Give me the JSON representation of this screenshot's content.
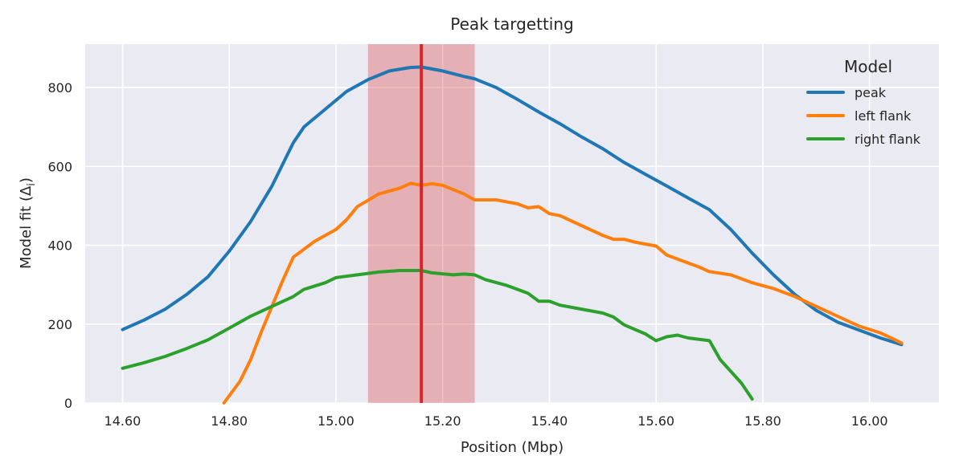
{
  "chart_data": {
    "type": "line",
    "title": "Peak targetting",
    "xlabel": "Position (Mbp)",
    "ylabel": "Model fit (Δ",
    "ylabel_sub": "i",
    "ylabel_close": ")",
    "xlim": [
      14.53,
      16.13
    ],
    "ylim": [
      0,
      910
    ],
    "xticks": [
      14.6,
      14.8,
      15.0,
      15.2,
      15.4,
      15.6,
      15.8,
      16.0
    ],
    "xtick_labels": [
      "14.60",
      "14.80",
      "15.00",
      "15.20",
      "15.40",
      "15.60",
      "15.80",
      "16.00"
    ],
    "yticks": [
      0,
      200,
      400,
      600,
      800
    ],
    "ytick_labels": [
      "0",
      "200",
      "400",
      "600",
      "800"
    ],
    "grid": true,
    "legend": {
      "title": "Model",
      "position": "top-right"
    },
    "peak_line": {
      "x": 15.16,
      "color": "#d62728"
    },
    "peak_span": {
      "x0": 15.06,
      "x1": 15.26,
      "color": "#d62728"
    },
    "series": [
      {
        "name": "peak",
        "color": "#1f77b4",
        "points": [
          [
            14.6,
            186
          ],
          [
            14.64,
            210
          ],
          [
            14.68,
            238
          ],
          [
            14.72,
            275
          ],
          [
            14.76,
            320
          ],
          [
            14.8,
            385
          ],
          [
            14.84,
            460
          ],
          [
            14.88,
            550
          ],
          [
            14.92,
            660
          ],
          [
            14.94,
            700
          ],
          [
            14.98,
            745
          ],
          [
            15.02,
            790
          ],
          [
            15.06,
            820
          ],
          [
            15.1,
            842
          ],
          [
            15.14,
            851
          ],
          [
            15.16,
            852
          ],
          [
            15.2,
            842
          ],
          [
            15.24,
            828
          ],
          [
            15.26,
            822
          ],
          [
            15.3,
            800
          ],
          [
            15.34,
            770
          ],
          [
            15.38,
            738
          ],
          [
            15.42,
            708
          ],
          [
            15.46,
            675
          ],
          [
            15.5,
            645
          ],
          [
            15.54,
            610
          ],
          [
            15.58,
            580
          ],
          [
            15.62,
            550
          ],
          [
            15.66,
            520
          ],
          [
            15.7,
            490
          ],
          [
            15.74,
            440
          ],
          [
            15.78,
            380
          ],
          [
            15.82,
            325
          ],
          [
            15.86,
            275
          ],
          [
            15.9,
            235
          ],
          [
            15.94,
            205
          ],
          [
            15.98,
            185
          ],
          [
            16.02,
            165
          ],
          [
            16.06,
            148
          ]
        ]
      },
      {
        "name": "left flank",
        "color": "#ff7f0e",
        "points": [
          [
            14.79,
            0
          ],
          [
            14.82,
            55
          ],
          [
            14.84,
            110
          ],
          [
            14.86,
            180
          ],
          [
            14.88,
            245
          ],
          [
            14.9,
            310
          ],
          [
            14.92,
            370
          ],
          [
            14.96,
            410
          ],
          [
            15.0,
            440
          ],
          [
            15.02,
            465
          ],
          [
            15.04,
            498
          ],
          [
            15.08,
            530
          ],
          [
            15.12,
            545
          ],
          [
            15.14,
            557
          ],
          [
            15.16,
            552
          ],
          [
            15.18,
            556
          ],
          [
            15.2,
            552
          ],
          [
            15.24,
            530
          ],
          [
            15.26,
            515
          ],
          [
            15.3,
            515
          ],
          [
            15.34,
            505
          ],
          [
            15.36,
            495
          ],
          [
            15.38,
            498
          ],
          [
            15.4,
            480
          ],
          [
            15.42,
            475
          ],
          [
            15.46,
            450
          ],
          [
            15.5,
            425
          ],
          [
            15.52,
            415
          ],
          [
            15.54,
            415
          ],
          [
            15.56,
            408
          ],
          [
            15.6,
            398
          ],
          [
            15.62,
            375
          ],
          [
            15.64,
            365
          ],
          [
            15.68,
            345
          ],
          [
            15.7,
            333
          ],
          [
            15.74,
            325
          ],
          [
            15.78,
            305
          ],
          [
            15.82,
            290
          ],
          [
            15.86,
            270
          ],
          [
            15.9,
            245
          ],
          [
            15.94,
            220
          ],
          [
            15.98,
            195
          ],
          [
            16.02,
            178
          ],
          [
            16.06,
            152
          ]
        ]
      },
      {
        "name": "right flank",
        "color": "#2ca02c",
        "points": [
          [
            14.6,
            88
          ],
          [
            14.64,
            102
          ],
          [
            14.68,
            118
          ],
          [
            14.72,
            138
          ],
          [
            14.76,
            160
          ],
          [
            14.8,
            190
          ],
          [
            14.84,
            220
          ],
          [
            14.88,
            245
          ],
          [
            14.92,
            270
          ],
          [
            14.94,
            288
          ],
          [
            14.98,
            305
          ],
          [
            15.0,
            318
          ],
          [
            15.04,
            325
          ],
          [
            15.08,
            332
          ],
          [
            15.12,
            336
          ],
          [
            15.16,
            336
          ],
          [
            15.18,
            330
          ],
          [
            15.22,
            325
          ],
          [
            15.24,
            327
          ],
          [
            15.26,
            325
          ],
          [
            15.28,
            313
          ],
          [
            15.32,
            298
          ],
          [
            15.36,
            278
          ],
          [
            15.38,
            258
          ],
          [
            15.4,
            258
          ],
          [
            15.42,
            248
          ],
          [
            15.46,
            238
          ],
          [
            15.5,
            228
          ],
          [
            15.52,
            218
          ],
          [
            15.54,
            198
          ],
          [
            15.58,
            175
          ],
          [
            15.6,
            158
          ],
          [
            15.62,
            168
          ],
          [
            15.64,
            172
          ],
          [
            15.66,
            165
          ],
          [
            15.7,
            158
          ],
          [
            15.72,
            110
          ],
          [
            15.76,
            50
          ],
          [
            15.78,
            10
          ]
        ]
      }
    ]
  }
}
